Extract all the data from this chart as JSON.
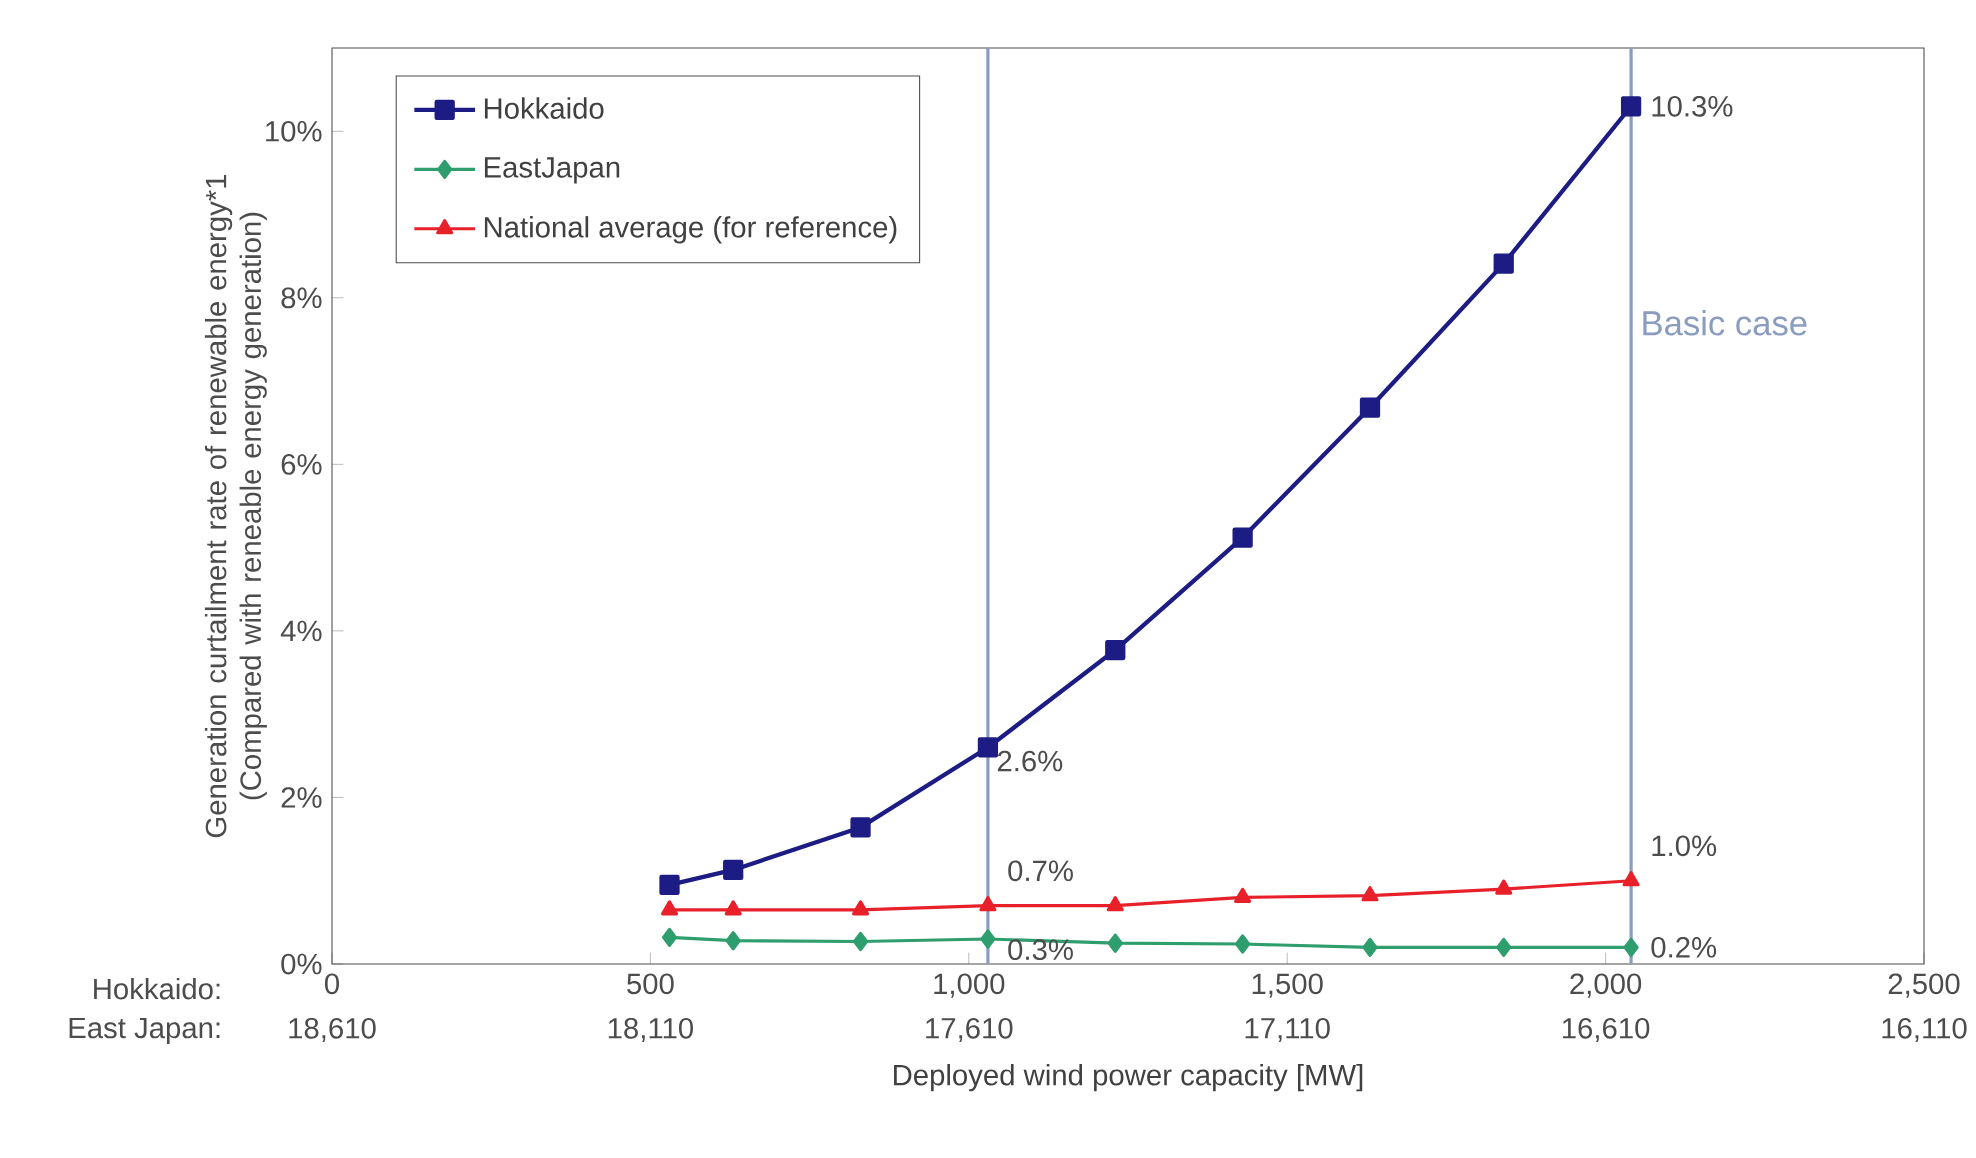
{
  "chart_data": {
    "type": "line",
    "xlabel": "Deployed wind power capacity [MW]",
    "ylabel": "Generation curtailment rate of renewable energy*1 (Compared with reneable energy generation)",
    "x": [
      530,
      630,
      830,
      1030,
      1230,
      1430,
      1630,
      1840,
      2040
    ],
    "series": [
      {
        "name": "Hokkaido",
        "color": "#1c1c84",
        "marker": "square",
        "values": [
          0.95,
          1.13,
          1.64,
          2.6,
          3.77,
          5.12,
          6.68,
          8.41,
          10.3
        ],
        "value_labels": [
          null,
          null,
          null,
          "2.6%",
          null,
          null,
          null,
          null,
          "10.3%"
        ]
      },
      {
        "name": "EastJapan",
        "color": "#2e9e6e",
        "marker": "diamond",
        "values": [
          0.32,
          0.28,
          0.27,
          0.3,
          0.25,
          0.24,
          0.2,
          0.2,
          0.2
        ],
        "value_labels": [
          null,
          null,
          null,
          "0.3%",
          null,
          null,
          null,
          null,
          "0.2%"
        ]
      },
      {
        "name": "National average (for reference)",
        "color": "#e8202a",
        "marker": "triangle",
        "values": [
          0.65,
          0.65,
          0.65,
          0.7,
          0.7,
          0.8,
          0.82,
          0.9,
          1.0
        ],
        "value_labels": [
          null,
          null,
          null,
          "0.7%",
          null,
          null,
          null,
          null,
          "1.0%"
        ]
      }
    ],
    "xlim": [
      0,
      2500
    ],
    "xticks": [
      {
        "value": 0,
        "label": "0"
      },
      {
        "value": 500,
        "label": "500"
      },
      {
        "value": 1000,
        "label": "1,000"
      },
      {
        "value": 1500,
        "label": "1,500"
      },
      {
        "value": 2000,
        "label": "2,000"
      },
      {
        "value": 2500,
        "label": "2,500"
      }
    ],
    "x2lim": [
      18610,
      16110
    ],
    "x2ticks": [
      {
        "value": 18610,
        "label": "18,610"
      },
      {
        "value": 18110,
        "label": "18,110"
      },
      {
        "value": 17610,
        "label": "17,610"
      },
      {
        "value": 17110,
        "label": "17,110"
      },
      {
        "value": 16610,
        "label": "16,610"
      },
      {
        "value": 16110,
        "label": "16,110"
      }
    ],
    "ylim": [
      0,
      11
    ],
    "yticks": [
      {
        "value": 0,
        "label": "0%"
      },
      {
        "value": 2,
        "label": "2%"
      },
      {
        "value": 4,
        "label": "4%"
      },
      {
        "value": 6,
        "label": "6%"
      },
      {
        "value": 8,
        "label": "8%"
      },
      {
        "value": 10,
        "label": "10%"
      }
    ],
    "ref_lines": [
      {
        "axis": "x",
        "value": 1030,
        "color": "#8a9cc0"
      },
      {
        "axis": "x",
        "value": 2040,
        "color": "#8a9cc0",
        "label": "Basic case"
      }
    ],
    "annotations": [
      "Hokkaido:",
      "East Japan:"
    ],
    "legend": "top left",
    "grid": false,
    "line_style": "solid"
  }
}
